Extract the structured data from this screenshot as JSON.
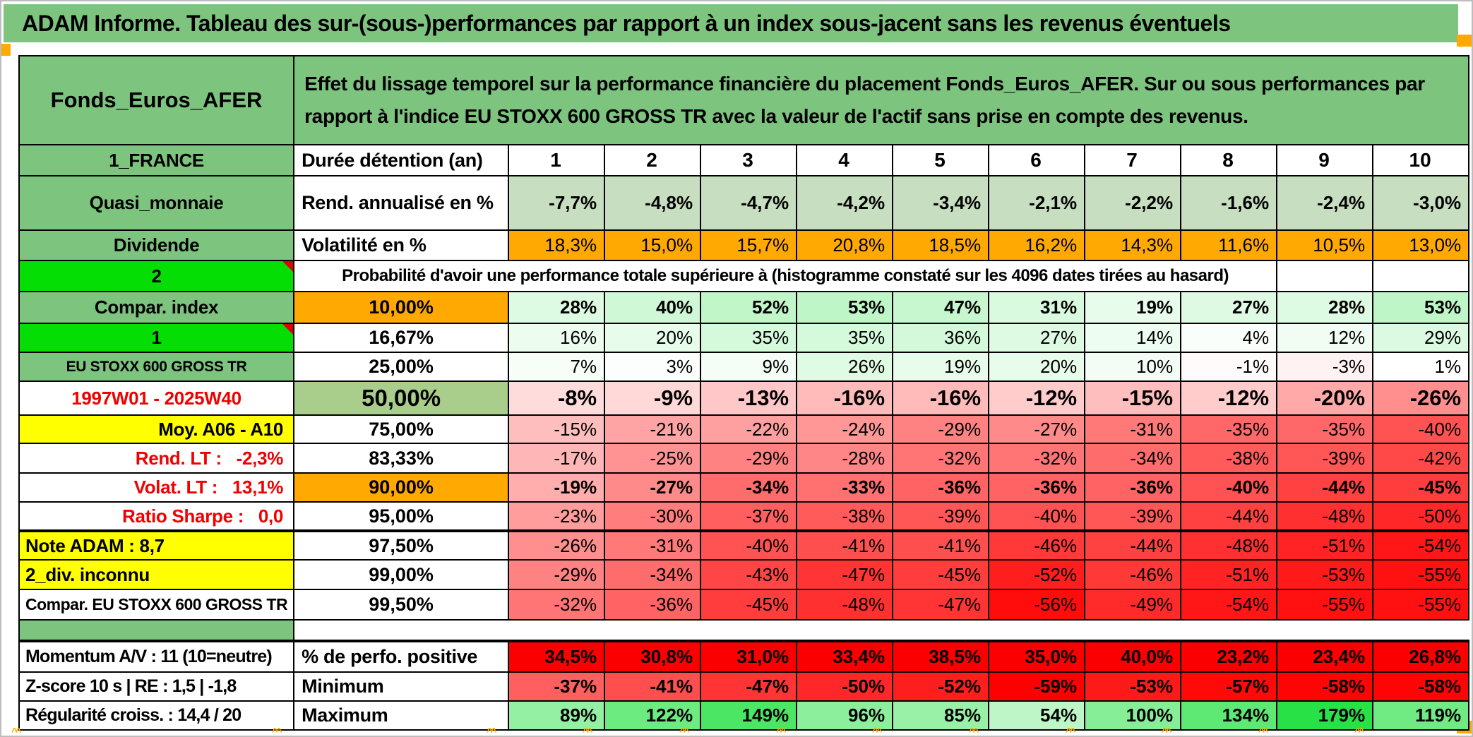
{
  "app": {
    "title": "ADAM Informe. Tableau des sur-(sous-)performances par rapport à un index sous-jacent sans les revenus éventuels"
  },
  "header": {
    "fund_name": "Fonds_Euros_AFER",
    "description": "Effet du lissage temporel sur la performance financière du placement Fonds_Euros_AFER. Sur ou sous performances par rapport à l'indice EU STOXX 600 GROSS TR avec la valeur de l'actif sans prise en compte des revenus."
  },
  "colors": {
    "band_green": "#7DC47E",
    "bright_green": "#05DE05",
    "band50_green": "#A9CE8C",
    "orange": "#FFA902",
    "yellow": "#FFFF00",
    "sage": "#C7DEC0",
    "gray_label": "#EDEDED",
    "solid_red": "#FA0000",
    "red_text": "#F00000",
    "heat_scale": {
      "min": -59,
      "max": 179
    }
  },
  "chart_data": {
    "type": "table",
    "title": "Probabilité d'avoir une performance totale supérieure à (histogramme constaté sur les 4096 dates tirées au hasard)",
    "columns": [
      "1",
      "2",
      "3",
      "4",
      "5",
      "6",
      "7",
      "8",
      "9",
      "10"
    ],
    "rows": [
      {
        "id": "duration",
        "a": "1_FRANCE",
        "aClass": "green",
        "b": "Durée détention (an)",
        "bKind": "label",
        "kind": "head",
        "cells": [
          "1",
          "2",
          "3",
          "4",
          "5",
          "6",
          "7",
          "8",
          "9",
          "10"
        ],
        "fill": "none"
      },
      {
        "id": "rendement",
        "a": "Quasi_monnaie",
        "aClass": "green",
        "b": "Rend. annualisé en %",
        "bKind": "label",
        "cells": [
          "-7,7%",
          "-4,8%",
          "-4,7%",
          "-4,2%",
          "-3,4%",
          "-2,1%",
          "-2,2%",
          "-1,6%",
          "-2,4%",
          "-3,0%"
        ],
        "fill": "sage",
        "bold": true
      },
      {
        "id": "volatilite",
        "a": "Dividende",
        "aClass": "green",
        "b": "Volatilité en %",
        "bKind": "label",
        "cells": [
          "18,3%",
          "15,0%",
          "15,7%",
          "20,8%",
          "18,5%",
          "16,2%",
          "14,3%",
          "11,6%",
          "10,5%",
          "13,0%"
        ],
        "fill": "orange",
        "bold": false
      },
      {
        "id": "probabilite",
        "a": "2",
        "aClass": "bright",
        "note": true,
        "merged": "Probabilité d'avoir une performance totale supérieure à (histogramme constaté sur les 4096 dates tirées au hasard)",
        "mergedSpan": 9,
        "emptyTail": 2
      },
      {
        "id": "p10",
        "a": "Compar. index",
        "aClass": "green",
        "b": "10,00%",
        "bKind": "pct",
        "bFill": "orange",
        "cells": [
          "28%",
          "40%",
          "52%",
          "53%",
          "47%",
          "31%",
          "19%",
          "27%",
          "28%",
          "53%"
        ],
        "fill": "heat",
        "bold": true
      },
      {
        "id": "p16",
        "a": "1",
        "aClass": "bright",
        "note": true,
        "b": "16,67%",
        "bKind": "pct",
        "cells": [
          "16%",
          "20%",
          "35%",
          "35%",
          "36%",
          "27%",
          "14%",
          "4%",
          "12%",
          "29%"
        ],
        "fill": "heat"
      },
      {
        "id": "p25",
        "a": "EU STOXX 600 GROSS TR",
        "aClass": "green small",
        "b": "25,00%",
        "bKind": "pct",
        "cells": [
          "7%",
          "3%",
          "9%",
          "26%",
          "19%",
          "20%",
          "10%",
          "-1%",
          "-3%",
          "1%"
        ],
        "fill": "heat"
      },
      {
        "id": "p50",
        "a": "1997W01 - 2025W40",
        "aClass": "redtext",
        "b": "50,00%",
        "bKind": "pct big",
        "bFill": "band50",
        "cells": [
          "-8%",
          "-9%",
          "-13%",
          "-16%",
          "-16%",
          "-12%",
          "-15%",
          "-12%",
          "-20%",
          "-26%"
        ],
        "fill": "heat",
        "bold": true,
        "big": true
      },
      {
        "id": "p75",
        "a": "Moy. A06 - A10",
        "aClass": "yellow right",
        "b": "75,00%",
        "bKind": "pct",
        "cells": [
          "-15%",
          "-21%",
          "-22%",
          "-24%",
          "-29%",
          "-27%",
          "-31%",
          "-35%",
          "-35%",
          "-40%"
        ],
        "fill": "heat"
      },
      {
        "id": "p83",
        "a": "Rend. LT :   -2,3%",
        "aClass": "redtext right",
        "b": "83,33%",
        "bKind": "pct",
        "cells": [
          "-17%",
          "-25%",
          "-29%",
          "-28%",
          "-32%",
          "-32%",
          "-34%",
          "-38%",
          "-39%",
          "-42%"
        ],
        "fill": "heat"
      },
      {
        "id": "p90",
        "a": "Volat. LT :   13,1%",
        "aClass": "redtext right",
        "b": "90,00%",
        "bKind": "pct",
        "bFill": "orange",
        "cells": [
          "-19%",
          "-27%",
          "-34%",
          "-33%",
          "-36%",
          "-36%",
          "-36%",
          "-40%",
          "-44%",
          "-45%"
        ],
        "fill": "heat",
        "bold": true
      },
      {
        "id": "p95",
        "a": "Ratio Sharpe :   0,0",
        "aClass": "redtext right",
        "b": "95,00%",
        "bKind": "pct",
        "cells": [
          "-23%",
          "-30%",
          "-37%",
          "-38%",
          "-39%",
          "-40%",
          "-39%",
          "-44%",
          "-48%",
          "-50%"
        ],
        "fill": "heat"
      },
      {
        "id": "p975",
        "a": "Note ADAM : 8,7",
        "aClass": "yellow left",
        "b": "97,50%",
        "bKind": "pct",
        "cells": [
          "-26%",
          "-31%",
          "-40%",
          "-41%",
          "-41%",
          "-46%",
          "-44%",
          "-48%",
          "-51%",
          "-54%"
        ],
        "fill": "heat",
        "thickTop": true
      },
      {
        "id": "p99",
        "a": "2_div. inconnu",
        "aClass": "yellow left",
        "b": "99,00%",
        "bKind": "pct",
        "cells": [
          "-29%",
          "-34%",
          "-43%",
          "-47%",
          "-45%",
          "-52%",
          "-46%",
          "-51%",
          "-53%",
          "-55%"
        ],
        "fill": "heat"
      },
      {
        "id": "p995",
        "a": "Compar. EU STOXX 600 GROSS TR",
        "aClass": "mid",
        "b": "99,50%",
        "bKind": "pct",
        "cells": [
          "-32%",
          "-36%",
          "-45%",
          "-48%",
          "-47%",
          "-56%",
          "-49%",
          "-54%",
          "-55%",
          "-55%"
        ],
        "fill": "heat"
      },
      {
        "id": "separator",
        "separator": true
      },
      {
        "id": "perfpos",
        "a": "Momentum A/V : 11 (10=neutre)",
        "aClass": "graylbl",
        "b": "% de perfo. positive",
        "bKind": "label",
        "cells": [
          "34,5%",
          "30,8%",
          "31,0%",
          "33,4%",
          "38,5%",
          "35,0%",
          "40,0%",
          "23,2%",
          "23,4%",
          "26,8%"
        ],
        "fill": "red",
        "bold": true,
        "thickTop": true
      },
      {
        "id": "minimum",
        "a": "Z-score 10 s | RE : 1,5 | -1,8",
        "aClass": "graylbl",
        "b": "Minimum",
        "bKind": "label",
        "cells": [
          "-37%",
          "-41%",
          "-47%",
          "-50%",
          "-52%",
          "-59%",
          "-53%",
          "-57%",
          "-58%",
          "-58%"
        ],
        "fill": "heat",
        "bold": true
      },
      {
        "id": "maximum",
        "a": "Régularité croiss. : 14,4 / 20",
        "aClass": "graylbl",
        "b": "Maximum",
        "bKind": "label",
        "cells": [
          "89%",
          "122%",
          "149%",
          "96%",
          "85%",
          "54%",
          "100%",
          "134%",
          "179%",
          "119%"
        ],
        "fill": "heat",
        "bold": true
      }
    ]
  }
}
